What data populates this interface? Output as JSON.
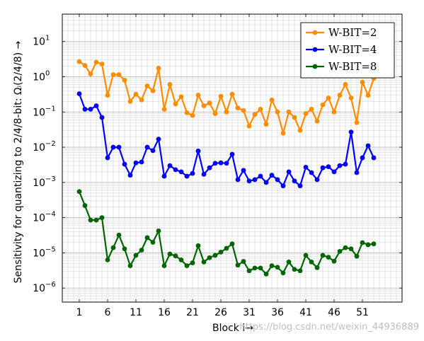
{
  "chart_data": {
    "type": "line",
    "ylabel": "Sensitivity for quantizing to 2/4/8-bit: Ωᵢ(2/4/8) →",
    "xlabel": "Block i→",
    "x_range": [
      -2,
      58
    ],
    "yscale": "log",
    "ylim": [
      4e-07,
      60
    ],
    "grid": true,
    "legend_position": "top-right",
    "x_ticks": [
      1,
      6,
      11,
      16,
      21,
      26,
      31,
      36,
      41,
      46,
      51
    ],
    "x_tick_labels": [
      "1",
      "6",
      "11",
      "16",
      "21",
      "26",
      "31",
      "36",
      "41",
      "46",
      "51"
    ],
    "y_ticks": [
      1e-06,
      1e-05,
      0.0001,
      0.001,
      0.01,
      0.1,
      1,
      10
    ],
    "y_tick_labels": [
      {
        "base": "10",
        "exp": "−6"
      },
      {
        "base": "10",
        "exp": "−5"
      },
      {
        "base": "10",
        "exp": "−4"
      },
      {
        "base": "10",
        "exp": "−3"
      },
      {
        "base": "10",
        "exp": "−2"
      },
      {
        "base": "10",
        "exp": "−1"
      },
      {
        "base": "10",
        "exp": "0"
      },
      {
        "base": "10",
        "exp": "1"
      }
    ],
    "series": [
      {
        "name": "W-BIT=2",
        "color": "#ff8c00",
        "x": [
          1,
          2,
          3,
          4,
          5,
          6,
          7,
          8,
          9,
          10,
          11,
          12,
          13,
          14,
          15,
          16,
          17,
          18,
          19,
          20,
          21,
          22,
          23,
          24,
          25,
          26,
          27,
          28,
          29,
          30,
          31,
          32,
          33,
          34,
          35,
          36,
          37,
          38,
          39,
          40,
          41,
          42,
          43,
          44,
          45,
          46,
          47,
          48,
          49,
          50,
          51,
          52,
          53
        ],
        "y": [
          2.7,
          2.1,
          1.2,
          2.6,
          2.3,
          0.3,
          1.15,
          1.15,
          0.8,
          0.2,
          0.32,
          0.22,
          0.55,
          0.4,
          1.75,
          0.12,
          0.6,
          0.17,
          0.27,
          0.095,
          0.08,
          0.3,
          0.15,
          0.18,
          0.09,
          0.28,
          0.1,
          0.32,
          0.13,
          0.11,
          0.04,
          0.085,
          0.12,
          0.045,
          0.22,
          0.1,
          0.025,
          0.1,
          0.07,
          0.03,
          0.09,
          0.12,
          0.055,
          0.16,
          0.25,
          0.1,
          0.3,
          0.6,
          0.25,
          0.05,
          0.7,
          0.3,
          0.9
        ]
      },
      {
        "name": "W-BIT=4",
        "color": "#0000ff",
        "x": [
          1,
          2,
          3,
          4,
          5,
          6,
          7,
          8,
          9,
          10,
          11,
          12,
          13,
          14,
          15,
          16,
          17,
          18,
          19,
          20,
          21,
          22,
          23,
          24,
          25,
          26,
          27,
          28,
          29,
          30,
          31,
          32,
          33,
          34,
          35,
          36,
          37,
          38,
          39,
          40,
          41,
          42,
          43,
          44,
          45,
          46,
          47,
          48,
          49,
          50,
          51,
          52,
          53
        ],
        "y": [
          0.33,
          0.12,
          0.12,
          0.15,
          0.07,
          0.005,
          0.01,
          0.01,
          0.0033,
          0.0016,
          0.0036,
          0.0038,
          0.01,
          0.008,
          0.017,
          0.0015,
          0.003,
          0.0023,
          0.002,
          0.0015,
          0.0018,
          0.0078,
          0.0017,
          0.0026,
          0.0035,
          0.0036,
          0.0035,
          0.0063,
          0.0012,
          0.0022,
          0.0011,
          0.0012,
          0.0015,
          0.001,
          0.0016,
          0.0012,
          0.0008,
          0.002,
          0.0011,
          0.0008,
          0.0027,
          0.0019,
          0.0012,
          0.0026,
          0.0028,
          0.002,
          0.003,
          0.0033,
          0.027,
          0.0019,
          0.005,
          0.011,
          0.005
        ]
      },
      {
        "name": "W-BIT=8",
        "color": "#006400",
        "x": [
          1,
          2,
          3,
          4,
          5,
          6,
          7,
          8,
          9,
          10,
          11,
          12,
          13,
          14,
          15,
          16,
          17,
          18,
          19,
          20,
          21,
          22,
          23,
          24,
          25,
          26,
          27,
          28,
          29,
          30,
          31,
          32,
          33,
          34,
          35,
          36,
          37,
          38,
          39,
          40,
          41,
          42,
          43,
          44,
          45,
          46,
          47,
          48,
          49,
          50,
          51,
          52,
          53
        ],
        "y": [
          0.00055,
          0.00022,
          8.5e-05,
          8.5e-05,
          0.0001,
          6.3e-06,
          1.4e-05,
          3.2e-05,
          1.3e-05,
          4.3e-06,
          8.5e-06,
          1.2e-05,
          2.7e-05,
          2e-05,
          4.2e-05,
          4.3e-06,
          9.3e-06,
          8.2e-06,
          6.3e-06,
          4.3e-06,
          5.2e-06,
          1.6e-05,
          5.5e-06,
          7.3e-06,
          8.5e-06,
          1.05e-05,
          1.35e-05,
          1.8e-05,
          4.5e-06,
          5.7e-06,
          3.1e-06,
          3.7e-06,
          3.7e-06,
          2.5e-06,
          4.3e-06,
          3.9e-06,
          2.7e-06,
          5.5e-06,
          3.4e-06,
          3.1e-06,
          8.5e-06,
          5.5e-06,
          3.8e-06,
          8.5e-06,
          7.5e-06,
          5.8e-06,
          1.1e-05,
          1.4e-05,
          1.3e-05,
          8e-06,
          1.95e-05,
          1.7e-05,
          1.8e-05
        ]
      }
    ]
  },
  "watermark": "https://blog.csdn.net/weixin_44936889"
}
